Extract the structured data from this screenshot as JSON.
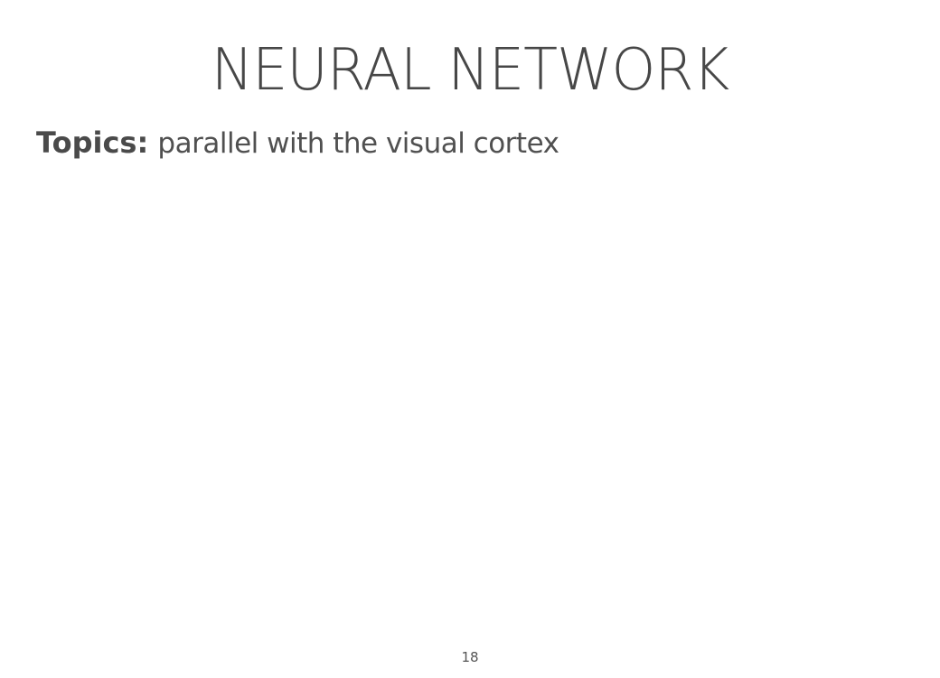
{
  "slide": {
    "title": "NEURAL NETWORK",
    "topics_label": "Topics:",
    "topics_text": "parallel with the visual cortex",
    "page_number": "18"
  },
  "colors": {
    "background": "#ffffff",
    "text": "#4a4a4a"
  }
}
